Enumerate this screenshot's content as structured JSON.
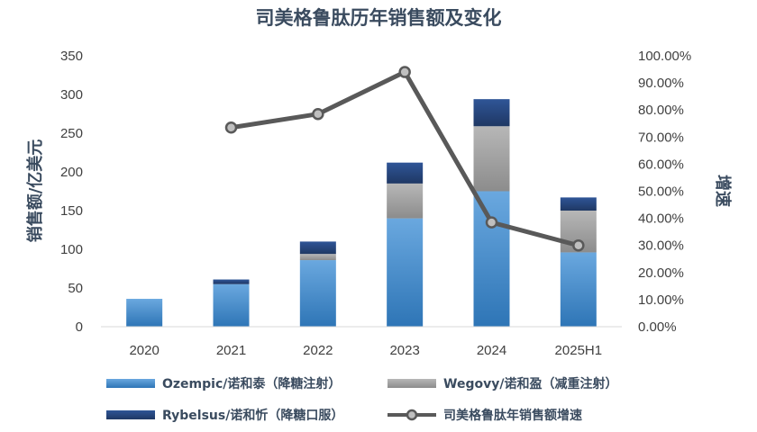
{
  "chart_data": {
    "type": "bar",
    "stacked": true,
    "title": "司美格鲁肽历年销售额及变化",
    "ylabel": "销售额/亿美元",
    "y2label": "增速",
    "categories": [
      "2020",
      "2021",
      "2022",
      "2023",
      "2024",
      "2025H1"
    ],
    "ylim": [
      0,
      350
    ],
    "y_ticks": [
      "0",
      "50",
      "100",
      "150",
      "200",
      "250",
      "300",
      "350"
    ],
    "y2lim": [
      0,
      1
    ],
    "y2_ticks": [
      "0.00%",
      "10.00%",
      "20.00%",
      "30.00%",
      "40.00%",
      "50.00%",
      "60.00%",
      "70.00%",
      "80.00%",
      "90.00%",
      "100.00%"
    ],
    "series": [
      {
        "name": "Ozempic/诺和泰（降糖注射）",
        "type": "bar",
        "axis": "left",
        "color": "#5b9bd5",
        "values": [
          36,
          55,
          86,
          140,
          175,
          96
        ]
      },
      {
        "name": "Wegovy/诺和盈（减重注射）",
        "type": "bar",
        "axis": "left",
        "color": "#a5a5a5",
        "values": [
          0,
          0,
          8,
          45,
          84,
          54
        ]
      },
      {
        "name": "Rybelsus/诺和忻（降糖口服）",
        "type": "bar",
        "axis": "left",
        "color": "#264478",
        "values": [
          0,
          6,
          16,
          27,
          35,
          17
        ]
      },
      {
        "name": "司美格鲁肽年销售额增速",
        "type": "line",
        "axis": "right",
        "color": "#595959",
        "values": [
          null,
          0.735,
          0.785,
          0.94,
          0.385,
          0.3
        ]
      }
    ],
    "grid": false,
    "legend_position": "bottom"
  }
}
